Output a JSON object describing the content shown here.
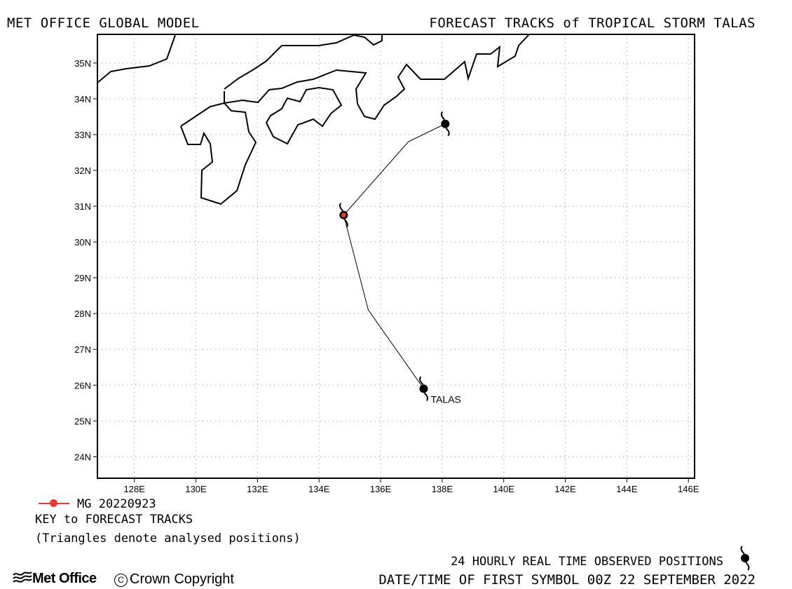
{
  "header": {
    "left": "MET OFFICE GLOBAL MODEL",
    "right": "FORECAST TRACKS of TROPICAL STORM TALAS"
  },
  "map": {
    "lon_range": [
      126.8,
      146.2
    ],
    "lat_range": [
      23.4,
      35.8
    ],
    "lon_ticks": [
      "128E",
      "130E",
      "132E",
      "134E",
      "136E",
      "138E",
      "140E",
      "142E",
      "144E",
      "146E"
    ],
    "lat_ticks": [
      "35N",
      "34N",
      "33N",
      "32N",
      "31N",
      "30N",
      "29N",
      "28N",
      "27N",
      "26N",
      "25N",
      "24N"
    ],
    "grid": "dotted",
    "coastline_color": "#000000"
  },
  "storm": {
    "name": "TALAS",
    "observed_track": [
      {
        "lon": 137.4,
        "lat": 25.9
      },
      {
        "lon": 134.8,
        "lat": 30.75
      },
      {
        "lon": 138.1,
        "lat": 33.3
      }
    ],
    "track_line": [
      {
        "lon": 137.4,
        "lat": 25.9
      },
      {
        "lon": 135.6,
        "lat": 28.1
      },
      {
        "lon": 134.8,
        "lat": 30.75
      },
      {
        "lon": 136.9,
        "lat": 32.8
      },
      {
        "lon": 138.1,
        "lat": 33.3
      }
    ],
    "forecast_marker": {
      "lon": 134.8,
      "lat": 30.75,
      "color": "#e53935"
    }
  },
  "legend": {
    "series_label": "MG 20220923",
    "series_color": "#e53935",
    "key_title": "KEY to FORECAST TRACKS",
    "key_note": "(Triangles denote analysed positions)",
    "observed_label": "24 HOURLY REAL TIME OBSERVED POSITIONS",
    "first_symbol": "DATE/TIME OF FIRST SYMBOL 00Z 22 SEPTEMBER 2022"
  },
  "footer": {
    "logo": "Met Office",
    "copyright": "Crown Copyright"
  },
  "icons": {
    "storm_symbol": "tropical-storm-icon",
    "logo_symbol": "met-office-waves-icon"
  }
}
